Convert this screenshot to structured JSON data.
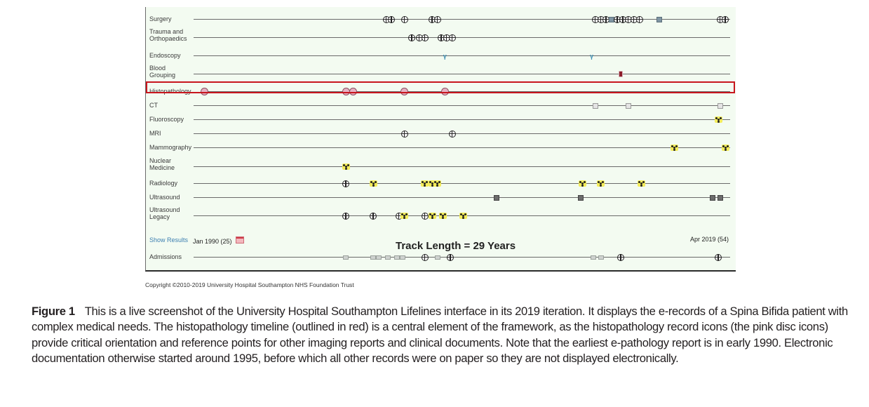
{
  "timeline": {
    "start_year": 1990.0,
    "end_year": 2019.25,
    "rows": [
      {
        "label": "Surgery",
        "events": [
          {
            "type": "plus",
            "year": 2000.5
          },
          {
            "type": "plus",
            "year": 2000.8
          },
          {
            "type": "plus",
            "year": 2001.5
          },
          {
            "type": "plus",
            "year": 2003.0
          },
          {
            "type": "plus",
            "year": 2003.3
          },
          {
            "type": "plus",
            "year": 2011.9
          },
          {
            "type": "plus",
            "year": 2012.2
          },
          {
            "type": "plus",
            "year": 2012.5
          },
          {
            "type": "square",
            "year": 2012.8
          },
          {
            "type": "plus",
            "year": 2013.1
          },
          {
            "type": "plus",
            "year": 2013.4
          },
          {
            "type": "plus",
            "year": 2013.7
          },
          {
            "type": "plus",
            "year": 2014.0
          },
          {
            "type": "plus",
            "year": 2014.3
          },
          {
            "type": "square",
            "year": 2015.4
          },
          {
            "type": "plus",
            "year": 2018.7
          },
          {
            "type": "plus",
            "year": 2019.0
          }
        ]
      },
      {
        "label": "Trauma and Orthopaedics",
        "events": [
          {
            "type": "plus",
            "year": 2001.9
          },
          {
            "type": "plus",
            "year": 2002.3
          },
          {
            "type": "plus",
            "year": 2002.6
          },
          {
            "type": "plus",
            "year": 2003.5
          },
          {
            "type": "plus",
            "year": 2003.8
          },
          {
            "type": "plus",
            "year": 2004.1
          }
        ]
      },
      {
        "label": "Endoscopy",
        "events": [
          {
            "type": "scope",
            "year": 2003.7
          },
          {
            "type": "scope",
            "year": 2011.7
          }
        ]
      },
      {
        "label": "Blood Grouping",
        "events": [
          {
            "type": "blood",
            "year": 2013.3
          }
        ]
      },
      {
        "label": "Histopathology",
        "highlighted": true,
        "events": [
          {
            "type": "disc",
            "year": 1990.6
          },
          {
            "type": "disc",
            "year": 1998.3
          },
          {
            "type": "disc",
            "year": 1998.7
          },
          {
            "type": "disc",
            "year": 2001.5
          },
          {
            "type": "disc",
            "year": 2003.7
          }
        ]
      },
      {
        "label": "CT",
        "events": [
          {
            "type": "ct",
            "year": 2011.9
          },
          {
            "type": "ct",
            "year": 2013.7
          },
          {
            "type": "ct",
            "year": 2018.7
          }
        ]
      },
      {
        "label": "Fluoroscopy",
        "events": [
          {
            "type": "rad",
            "year": 2018.6
          }
        ]
      },
      {
        "label": "MRI",
        "events": [
          {
            "type": "plus",
            "year": 2001.5
          },
          {
            "type": "plus",
            "year": 2004.1
          }
        ]
      },
      {
        "label": "Mammography",
        "events": [
          {
            "type": "rad",
            "year": 2016.2
          },
          {
            "type": "rad",
            "year": 2019.0
          }
        ]
      },
      {
        "label": "Nuclear Medicine",
        "events": [
          {
            "type": "rad",
            "year": 1998.3
          }
        ]
      },
      {
        "label": "Radiology",
        "events": [
          {
            "type": "plus",
            "year": 1998.3
          },
          {
            "type": "rad",
            "year": 1999.8
          },
          {
            "type": "rad",
            "year": 2002.6
          },
          {
            "type": "rad",
            "year": 2003.0
          },
          {
            "type": "rad",
            "year": 2003.3
          },
          {
            "type": "rad",
            "year": 2011.2
          },
          {
            "type": "rad",
            "year": 2012.2
          },
          {
            "type": "rad",
            "year": 2014.4
          }
        ]
      },
      {
        "label": "Ultrasound",
        "events": [
          {
            "type": "us",
            "year": 2006.5
          },
          {
            "type": "us",
            "year": 2011.1
          },
          {
            "type": "us",
            "year": 2018.3
          },
          {
            "type": "us",
            "year": 2018.7
          }
        ]
      },
      {
        "label": "Ultrasound Legacy",
        "events": [
          {
            "type": "plus",
            "year": 1998.3
          },
          {
            "type": "plus",
            "year": 1999.8
          },
          {
            "type": "plus",
            "year": 2001.2
          },
          {
            "type": "rad",
            "year": 2001.5
          },
          {
            "type": "plus",
            "year": 2002.6
          },
          {
            "type": "rad",
            "year": 2003.0
          },
          {
            "type": "rad",
            "year": 2003.6
          },
          {
            "type": "rad",
            "year": 2004.7
          }
        ]
      }
    ],
    "admissions": {
      "label": "Admissions",
      "events": [
        {
          "type": "adm",
          "year": 1998.3
        },
        {
          "type": "adm",
          "year": 1999.8
        },
        {
          "type": "adm",
          "year": 2000.1
        },
        {
          "type": "adm",
          "year": 2000.6
        },
        {
          "type": "adm",
          "year": 2001.1
        },
        {
          "type": "adm",
          "year": 2001.4
        },
        {
          "type": "plus",
          "year": 2002.6
        },
        {
          "type": "adm",
          "year": 2003.3
        },
        {
          "type": "plus",
          "year": 2004.0
        },
        {
          "type": "adm",
          "year": 2011.8
        },
        {
          "type": "adm",
          "year": 2012.2
        },
        {
          "type": "plus",
          "year": 2013.3
        },
        {
          "type": "plus",
          "year": 2018.6
        }
      ]
    },
    "show_results_label": "Show Results",
    "start_label": "Jan 1990 (25)",
    "end_label": "Apr 2019 (54)",
    "track_length_label": "Track Length = 29 Years",
    "calendar_icon": "calendar-icon",
    "highlight_color": "#c8161e"
  },
  "copyright": "Copyright ©2010-2019 University Hospital Southampton NHS Foundation Trust",
  "caption": {
    "title": "Figure 1",
    "text": "This is a live screenshot of the University Hospital Southampton Lifelines interface in its 2019 iteration. It displays the e-records of a Spina Bifida patient with complex medical needs. The histopathology timeline (outlined in red) is a central element of the framework, as the histopathology record icons (the pink disc icons) provide critical orientation and reference points for other imaging reports and clinical documents. Note that the earliest e-pathology report is in early 1990. Electronic documentation otherwise started around 1995, before which all other records were on paper so they are not displayed electronically."
  }
}
